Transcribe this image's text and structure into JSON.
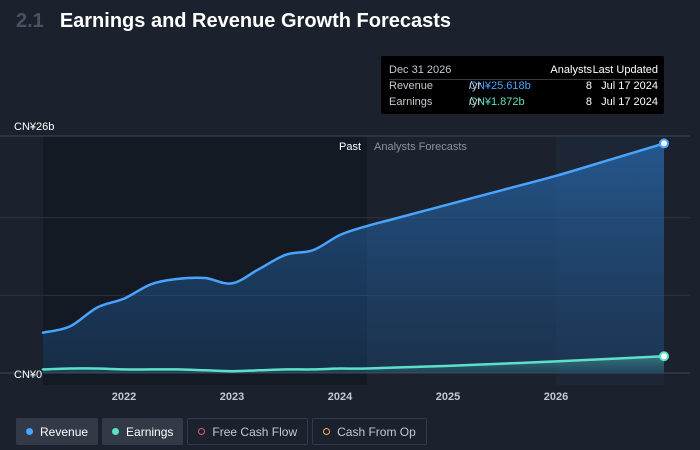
{
  "header": {
    "section_number": "2.1",
    "title": "Earnings and Revenue Growth Forecasts"
  },
  "tooltip": {
    "date": "Dec 31 2026",
    "col_analysts": "Analysts",
    "col_updated": "Last Updated",
    "rows": [
      {
        "label": "Revenue",
        "value": "CN¥25.618b",
        "unit": "/yr",
        "analysts": "8",
        "updated": "Jul 17 2024"
      },
      {
        "label": "Earnings",
        "value": "CN¥1.872b",
        "unit": "/yr",
        "analysts": "8",
        "updated": "Jul 17 2024"
      }
    ]
  },
  "legend": {
    "revenue": "Revenue",
    "earnings": "Earnings",
    "fcf": "Free Cash Flow",
    "cfo": "Cash From Op"
  },
  "colors": {
    "revenue": "#4aa3ff",
    "earnings": "#5ce1c7",
    "fcf": "#e05a7b",
    "cfo": "#f0a96b",
    "background": "#1b222d"
  },
  "chart_data": {
    "type": "area",
    "title": "Earnings and Revenue Growth Forecasts",
    "y_tick_labels": [
      "CN¥0",
      "CN¥26b"
    ],
    "ylim": [
      0,
      26
    ],
    "y_unit": "CN¥ billions",
    "xlim": [
      2021.25,
      2027.0
    ],
    "x_ticks": [
      2022,
      2023,
      2024,
      2025,
      2026
    ],
    "x_tick_labels": [
      "2022",
      "2023",
      "2024",
      "2025",
      "2026"
    ],
    "past_label": "Past",
    "forecast_label": "Analysts Forecasts",
    "forecast_start": 2024.25,
    "grid": true,
    "series": [
      {
        "name": "Revenue",
        "color": "#4aa3ff",
        "points": [
          [
            2021.25,
            4.5
          ],
          [
            2021.5,
            5.2
          ],
          [
            2021.75,
            7.3
          ],
          [
            2022.0,
            8.3
          ],
          [
            2022.25,
            9.9
          ],
          [
            2022.5,
            10.5
          ],
          [
            2022.75,
            10.6
          ],
          [
            2023.0,
            10.0
          ],
          [
            2023.25,
            11.6
          ],
          [
            2023.5,
            13.2
          ],
          [
            2023.75,
            13.7
          ],
          [
            2024.0,
            15.4
          ],
          [
            2024.25,
            16.4
          ],
          [
            2024.5,
            17.2
          ],
          [
            2025.0,
            18.8
          ],
          [
            2025.5,
            20.4
          ],
          [
            2026.0,
            22.0
          ],
          [
            2026.5,
            23.8
          ],
          [
            2027.0,
            25.618
          ]
        ]
      },
      {
        "name": "Earnings",
        "color": "#5ce1c7",
        "points": [
          [
            2021.25,
            0.4
          ],
          [
            2021.5,
            0.5
          ],
          [
            2021.75,
            0.5
          ],
          [
            2022.0,
            0.4
          ],
          [
            2022.25,
            0.4
          ],
          [
            2022.5,
            0.4
          ],
          [
            2022.75,
            0.3
          ],
          [
            2023.0,
            0.2
          ],
          [
            2023.25,
            0.3
          ],
          [
            2023.5,
            0.4
          ],
          [
            2023.75,
            0.4
          ],
          [
            2024.0,
            0.5
          ],
          [
            2024.25,
            0.5
          ],
          [
            2025.0,
            0.8
          ],
          [
            2026.0,
            1.3
          ],
          [
            2027.0,
            1.872
          ]
        ]
      }
    ]
  }
}
